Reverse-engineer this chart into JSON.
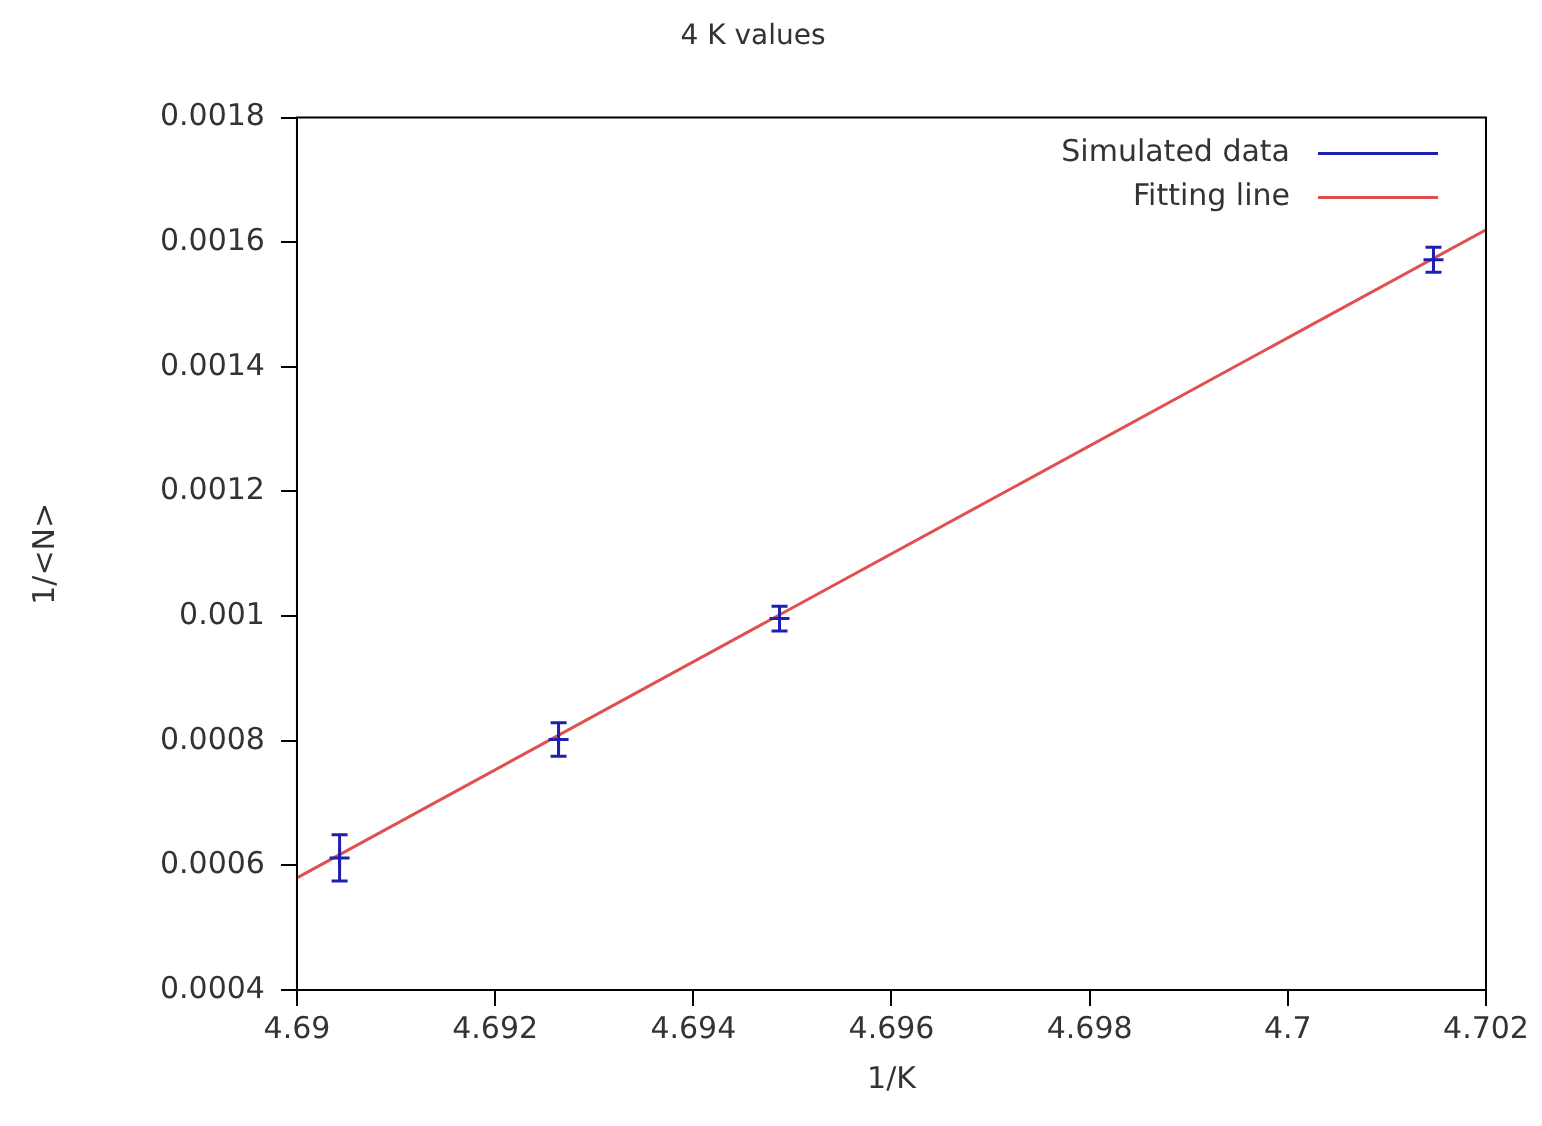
{
  "chart_data": {
    "type": "scatter",
    "title": "4 K values",
    "xlabel": "1/K",
    "ylabel": "1/<N>",
    "xlim": [
      4.69,
      4.702
    ],
    "xticks": [
      4.69,
      4.692,
      4.694,
      4.696,
      4.698,
      4.7,
      4.702
    ],
    "ylim": [
      0.0004,
      0.0018
    ],
    "yticks": [
      0.0004,
      0.0006,
      0.0008,
      0.001,
      0.0012,
      0.0014,
      0.0016,
      0.0018
    ],
    "grid": false,
    "legend": "top right",
    "series": [
      {
        "name": "Simulated data",
        "marker": "cross",
        "color": "#2020b0",
        "x": [
          4.69043,
          4.69264,
          4.69487,
          4.70147
        ],
        "values": [
          0.000612,
          0.000802,
          0.000996,
          0.001572
        ],
        "errors": [
          3.7e-05,
          2.7e-05,
          2e-05,
          2e-05
        ]
      },
      {
        "name": "Fitting line",
        "type": "line",
        "color": "#e05050",
        "x": [
          4.69,
          4.702
        ],
        "values": [
          0.00058,
          0.00162
        ]
      }
    ]
  }
}
